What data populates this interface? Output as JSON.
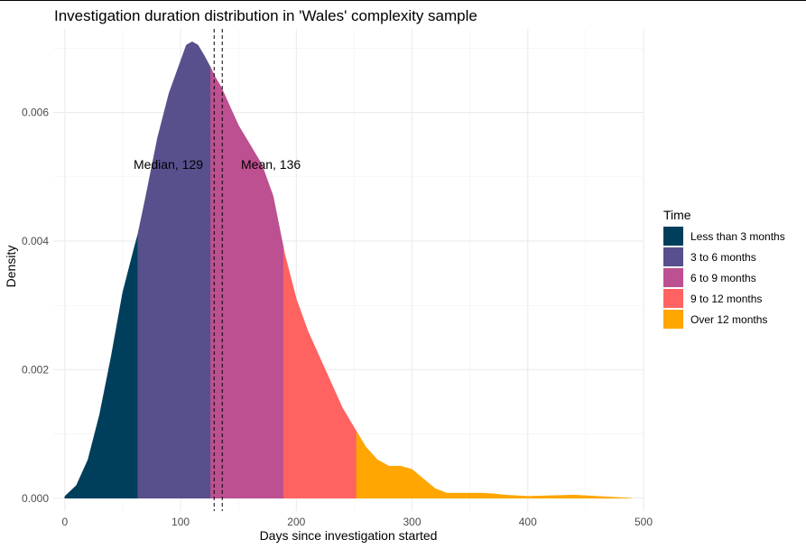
{
  "chart_data": {
    "type": "area",
    "title": "Investigation duration distribution in 'Wales' complexity sample",
    "xlabel": "Days since investigation started",
    "ylabel": "Density",
    "xlim": [
      -10,
      500
    ],
    "ylim": [
      -0.0002,
      0.0073
    ],
    "x_ticks": [
      0,
      100,
      200,
      300,
      400,
      500
    ],
    "x_tick_labels": [
      "0",
      "100",
      "200",
      "300",
      "400",
      "500"
    ],
    "y_ticks": [
      0,
      0.002,
      0.004,
      0.006
    ],
    "y_tick_labels": [
      "0.000",
      "0.002",
      "0.004",
      "0.006"
    ],
    "grid": true,
    "legend_position": "right",
    "legend_title": "Time",
    "density_curve": {
      "x": [
        0,
        10,
        20,
        30,
        40,
        50,
        60,
        63,
        70,
        80,
        90,
        100,
        105,
        110,
        115,
        120,
        126,
        130,
        135,
        140,
        150,
        160,
        170,
        180,
        190,
        200,
        210,
        220,
        230,
        240,
        250,
        260,
        270,
        280,
        290,
        300,
        310,
        320,
        330,
        340,
        350,
        360,
        370,
        380,
        390,
        400,
        420,
        440,
        460,
        480,
        490
      ],
      "y": [
        3e-05,
        0.0002,
        0.0006,
        0.0013,
        0.0022,
        0.0032,
        0.0039,
        0.0041,
        0.0047,
        0.0056,
        0.0063,
        0.0068,
        0.00705,
        0.0071,
        0.00705,
        0.0069,
        0.0067,
        0.00655,
        0.0064,
        0.0062,
        0.0058,
        0.0055,
        0.0052,
        0.0047,
        0.0038,
        0.0031,
        0.0026,
        0.0022,
        0.0018,
        0.0014,
        0.0011,
        0.0008,
        0.0006,
        0.0005,
        0.0005,
        0.00045,
        0.0003,
        0.00015,
        8e-05,
        8e-05,
        8e-05,
        8e-05,
        7e-05,
        5e-05,
        4e-05,
        3e-05,
        4e-05,
        5e-05,
        3e-05,
        1e-05,
        0
      ]
    },
    "series": [
      {
        "name": "Less than 3 months",
        "x_range": [
          0,
          63
        ],
        "color": "#003F5C"
      },
      {
        "name": "3 to 6 months",
        "x_range": [
          63,
          126
        ],
        "color": "#58508D"
      },
      {
        "name": "6 to 9 months",
        "x_range": [
          126,
          189
        ],
        "color": "#BC5090"
      },
      {
        "name": "9 to 12 months",
        "x_range": [
          189,
          252
        ],
        "color": "#FF6361"
      },
      {
        "name": "Over 12 months",
        "x_range": [
          252,
          490
        ],
        "color": "#FFA600"
      }
    ],
    "reference_lines": [
      {
        "name": "Median",
        "value": 129,
        "label": "Median, 129"
      },
      {
        "name": "Mean",
        "value": 136,
        "label": "Mean, 136"
      }
    ]
  }
}
